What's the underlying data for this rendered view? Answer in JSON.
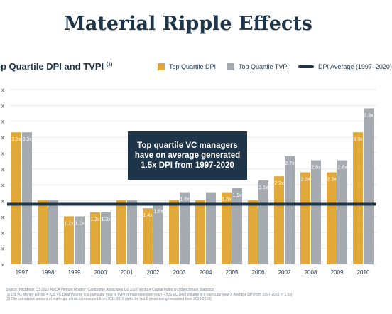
{
  "page": {
    "title": "Material Ripple Effects"
  },
  "chart_data": {
    "type": "bar",
    "title": "op Quartile DPI and TVPI",
    "title_footnote_marker": "(1)",
    "categories": [
      "1997",
      "1998",
      "1999",
      "2000",
      "2001",
      "2002",
      "2003",
      "2004",
      "2005",
      "2006",
      "2007",
      "2008",
      "2009",
      "2010"
    ],
    "series": [
      {
        "name": "Top Quartile DPI",
        "color": "#e0a93a",
        "values": [
          3.3,
          1.6,
          1.2,
          1.3,
          1.6,
          1.4,
          1.6,
          1.6,
          1.8,
          1.6,
          2.2,
          2.3,
          2.3,
          3.3
        ],
        "labels": [
          "3.3x",
          "",
          "1.2x",
          "1.3x",
          "",
          "1.4x",
          "",
          "",
          "1.8x",
          "",
          "2.2x",
          "2.3x",
          "2.3x",
          "3.3x"
        ]
      },
      {
        "name": "Top Quartile TVPI",
        "color": "#a6abb2",
        "values": [
          3.3,
          1.6,
          1.2,
          1.3,
          1.6,
          1.5,
          1.8,
          1.8,
          1.9,
          2.1,
          2.7,
          2.6,
          2.6,
          3.9
        ],
        "labels": [
          "3.3x",
          "",
          "1.2x",
          "1.3x",
          "",
          "1.5x",
          "1.8x",
          "",
          "1.9x",
          "2.1x",
          "2.7x",
          "2.6x",
          "2.6x",
          "3.9x"
        ]
      }
    ],
    "reference_line": {
      "name": "DPI Average (1997–2020)",
      "value": 1.5,
      "color": "#1e3448"
    },
    "ylim": [
      0,
      4.6
    ],
    "ytick_labels": [
      "x",
      "x",
      "x",
      "x",
      "x",
      "x",
      "x",
      "x",
      "x",
      "x",
      "x",
      "x"
    ],
    "grid": true,
    "legend": "top-right",
    "annotation": "Top quartile VC managers have on average generated 1.5x DPI from 1997-2020"
  },
  "footnotes": [
    "Source: Pitchbook Q3 2022 NVCA Venture Monitor; Cambridge Associates Q2 2022 Venture Capital Index and Benchmark Statistics",
    "(1)   US VC Money at Risk = (US VC Deal Volume in a particular year X TVPI in that respective year) – (US VC Deal Volume in a particular year X Average DPI from 1997-2020 of 1.5x)",
    "(2)   The cumulative amount of mark-ups at risk is measured from 2011-2019 (with the last 5 years being measured from 2015-2019)"
  ],
  "colors": {
    "navy": "#1e3448",
    "gold": "#e0a93a",
    "gray": "#a6abb2"
  }
}
